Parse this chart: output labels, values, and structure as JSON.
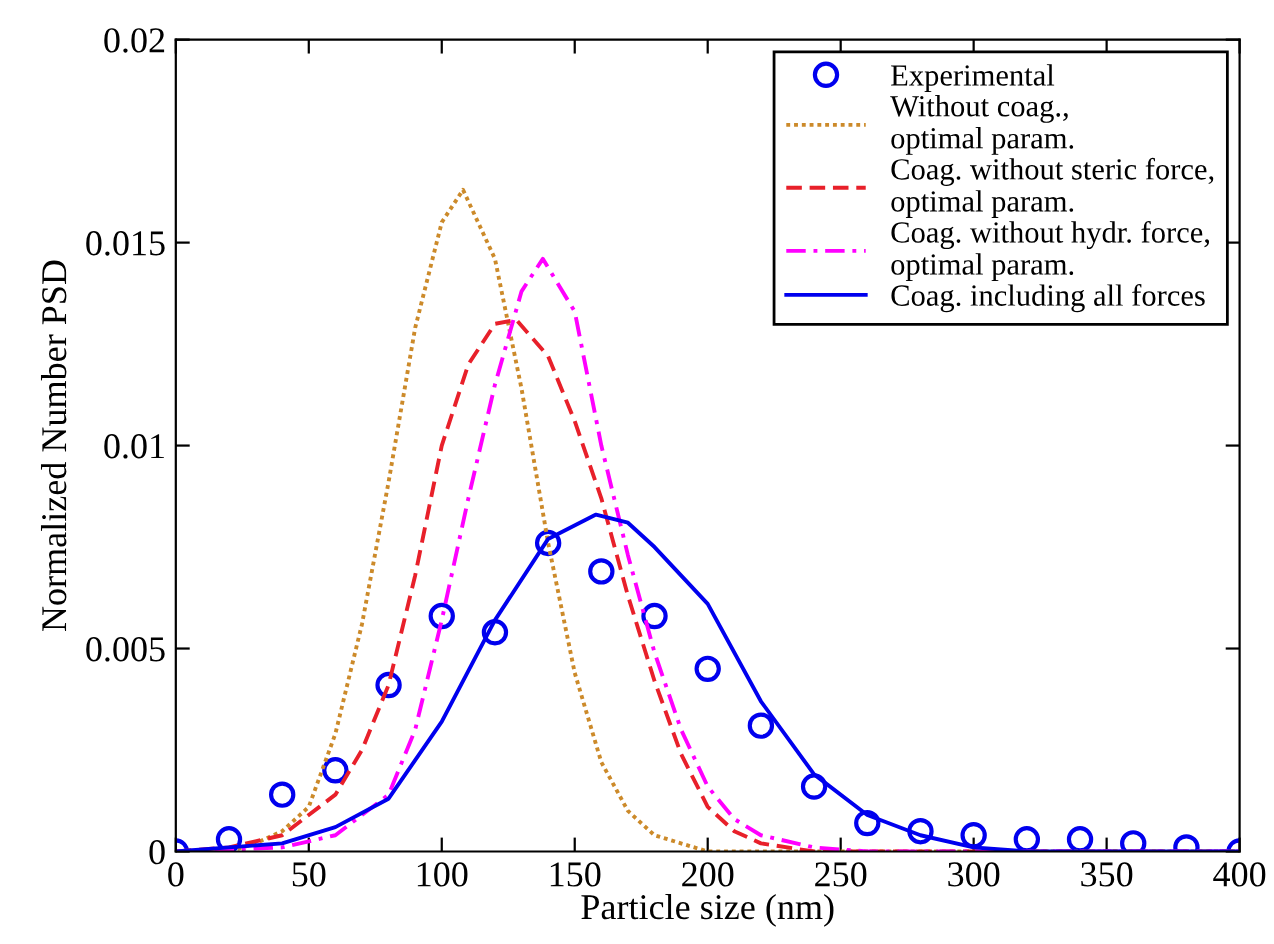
{
  "chart_data": {
    "type": "line",
    "xlabel": "Particle size (nm)",
    "ylabel": "Normalized Number PSD",
    "xlim": [
      0,
      400
    ],
    "ylim": [
      0,
      0.02
    ],
    "xticks": [
      0,
      50,
      100,
      150,
      200,
      250,
      300,
      350,
      400
    ],
    "yticks": [
      0,
      {
        "value": 0.005,
        "label": "0.005"
      },
      {
        "value": 0.01,
        "label": "0.01"
      },
      {
        "value": 0.015,
        "label": "0.015"
      },
      {
        "value": 0.02,
        "label": "0.02"
      }
    ],
    "grid": false,
    "legend": "top right",
    "series": [
      {
        "name": "Experimental",
        "type": "scatter",
        "marker": "circle",
        "color": "#0000ee",
        "x": [
          0,
          20,
          40,
          60,
          80,
          100,
          120,
          140,
          160,
          180,
          200,
          220,
          240,
          260,
          280,
          300,
          320,
          340,
          360,
          380,
          400
        ],
        "values": [
          0,
          0.0003,
          0.0014,
          0.002,
          0.0041,
          0.0058,
          0.0054,
          0.0076,
          0.0069,
          0.0058,
          0.0045,
          0.0031,
          0.0016,
          0.0007,
          0.0005,
          0.0004,
          0.0003,
          0.0003,
          0.0002,
          0.0001,
          0
        ]
      },
      {
        "name": "Without coag.,\noptimal param.",
        "line_style": "dotted",
        "color": "#cc8a2a",
        "x": [
          0,
          20,
          30,
          40,
          50,
          60,
          70,
          80,
          90,
          100,
          108,
          120,
          130,
          140,
          150,
          160,
          170,
          180,
          200,
          220,
          400
        ],
        "values": [
          0,
          0,
          0.0002,
          0.0005,
          0.0011,
          0.0029,
          0.0056,
          0.0091,
          0.0129,
          0.0155,
          0.0163,
          0.0146,
          0.0114,
          0.0076,
          0.0044,
          0.0022,
          0.001,
          0.0004,
          0,
          0,
          0
        ]
      },
      {
        "name": "Coag. without steric force,\noptimal param.",
        "line_style": "dashed",
        "color": "#e8202a",
        "x": [
          0,
          20,
          40,
          60,
          70,
          80,
          90,
          100,
          110,
          120,
          128,
          140,
          150,
          160,
          170,
          180,
          190,
          200,
          210,
          220,
          240,
          260,
          400
        ],
        "values": [
          0,
          0.0001,
          0.0004,
          0.0014,
          0.0025,
          0.0041,
          0.0068,
          0.01,
          0.012,
          0.013,
          0.0131,
          0.0122,
          0.0106,
          0.0087,
          0.0063,
          0.0042,
          0.0024,
          0.0011,
          0.0005,
          0.0002,
          0,
          0,
          0
        ]
      },
      {
        "name": "Coag. without hydr. force,\noptimal param.",
        "line_style": "dashdot",
        "color": "#ff00ff",
        "x": [
          0,
          40,
          60,
          80,
          90,
          100,
          110,
          120,
          130,
          138,
          150,
          160,
          170,
          180,
          190,
          200,
          210,
          220,
          240,
          260,
          400
        ],
        "values": [
          0,
          0.0001,
          0.0004,
          0.0014,
          0.003,
          0.0057,
          0.0087,
          0.0115,
          0.0138,
          0.0146,
          0.0133,
          0.01,
          0.0073,
          0.0049,
          0.003,
          0.0016,
          0.0008,
          0.0004,
          0.0001,
          0,
          0
        ]
      },
      {
        "name": "Coag. including all forces",
        "line_style": "solid",
        "color": "#0000ee",
        "x": [
          0,
          20,
          40,
          60,
          80,
          100,
          120,
          140,
          158,
          170,
          180,
          200,
          220,
          240,
          260,
          280,
          300,
          320,
          400
        ],
        "values": [
          0,
          0.0001,
          0.0002,
          0.0006,
          0.0013,
          0.0032,
          0.0057,
          0.0077,
          0.0083,
          0.0081,
          0.0075,
          0.0061,
          0.0037,
          0.0019,
          0.0009,
          0.0004,
          0.0001,
          0,
          0
        ]
      }
    ]
  }
}
